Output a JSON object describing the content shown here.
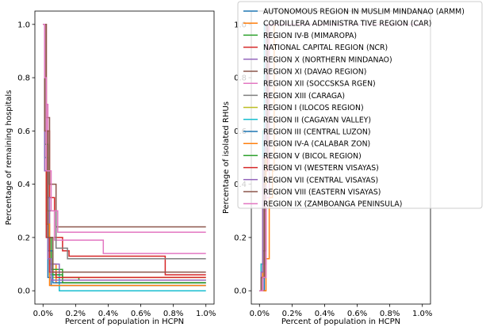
{
  "chart_data": [
    {
      "type": "line",
      "xlabel": "Percent of population in HCPN",
      "ylabel": "Percentage of remaining hospitals",
      "xlim": [
        -0.0005,
        0.0105
      ],
      "ylim": [
        -0.05,
        1.05
      ],
      "x_ticks": [
        0.0,
        0.002,
        0.004,
        0.006,
        0.008,
        0.01
      ],
      "x_tick_labels": [
        "0.0%",
        "0.2%",
        "0.4%",
        "0.6%",
        "0.8%",
        "1.0%"
      ],
      "y_ticks": [
        0.0,
        0.2,
        0.4,
        0.6,
        0.8,
        1.0
      ],
      "y_tick_labels": [
        "0.0",
        "0.2",
        "0.4",
        "0.6",
        "0.8",
        "1.0"
      ],
      "step": true,
      "series": [
        {
          "name": "AUTONOMOUS REGION IN MUSLIM MINDANAO (ARMM)",
          "color": "#1f77b4",
          "x": [
            0.0,
            0.0001,
            0.0002,
            0.0003,
            0.0005,
            0.01
          ],
          "y": [
            1.0,
            0.6,
            0.25,
            0.05,
            0.02,
            0.02
          ]
        },
        {
          "name": "CORDILLERA ADMINISTRA TIVE REGION (CAR)",
          "color": "#ff7f0e",
          "x": [
            0.0,
            0.0001,
            0.0002,
            0.0004,
            0.0008,
            0.01
          ],
          "y": [
            1.0,
            0.55,
            0.3,
            0.1,
            0.03,
            0.03
          ]
        },
        {
          "name": "REGION IV-B (MIMAROPA)",
          "color": "#2ca02c",
          "x": [
            0.0,
            0.0001,
            0.0003,
            0.0005,
            0.0012,
            0.0022,
            0.01
          ],
          "y": [
            1.0,
            0.5,
            0.2,
            0.08,
            0.05,
            0.04,
            0.04
          ]
        },
        {
          "name": "NATIONAL CAPITAL REGION (NCR)",
          "color": "#d62728",
          "x": [
            0.0,
            0.0002,
            0.0004,
            0.0007,
            0.0012,
            0.0016,
            0.0075,
            0.01
          ],
          "y": [
            1.0,
            0.6,
            0.35,
            0.2,
            0.15,
            0.13,
            0.06,
            0.06
          ]
        },
        {
          "name": "REGION X (NORTHERN MINDANAO)",
          "color": "#9467bd",
          "x": [
            0.0,
            0.0001,
            0.0002,
            0.0004,
            0.001,
            0.01
          ],
          "y": [
            1.0,
            0.7,
            0.35,
            0.1,
            0.04,
            0.04
          ]
        },
        {
          "name": "REGION XI (DAVAO REGION)",
          "color": "#8c564b",
          "x": [
            0.0,
            0.0002,
            0.0004,
            0.0008,
            0.01
          ],
          "y": [
            1.0,
            0.65,
            0.4,
            0.24,
            0.24
          ]
        },
        {
          "name": "REGION XII (SOCCSKSA RGEN)",
          "color": "#e377c2",
          "x": [
            0.0,
            0.0001,
            0.0003,
            0.0007,
            0.0037,
            0.01
          ],
          "y": [
            1.0,
            0.7,
            0.3,
            0.19,
            0.14,
            0.14
          ]
        },
        {
          "name": "REGION XIII (CARAGA)",
          "color": "#7f7f7f",
          "x": [
            0.0,
            0.0001,
            0.0003,
            0.0008,
            0.0015,
            0.01
          ],
          "y": [
            1.0,
            0.6,
            0.3,
            0.16,
            0.12,
            0.12
          ]
        },
        {
          "name": "REGION I (ILOCOS REGION)",
          "color": "#bcbd22",
          "x": [
            0.0,
            0.0001,
            0.0003,
            0.0006,
            0.01
          ],
          "y": [
            1.0,
            0.5,
            0.15,
            0.05,
            0.05
          ]
        },
        {
          "name": "REGION II (CAGAYAN VALLEY)",
          "color": "#17becf",
          "x": [
            0.0,
            0.0001,
            0.0002,
            0.0004,
            0.001,
            0.01
          ],
          "y": [
            1.0,
            0.5,
            0.2,
            0.06,
            0.0,
            0.0
          ]
        },
        {
          "name": "REGION III (CENTRAL LUZON)",
          "color": "#1f77b4",
          "x": [
            0.0,
            0.0001,
            0.0003,
            0.0006,
            0.01
          ],
          "y": [
            1.0,
            0.55,
            0.15,
            0.03,
            0.03
          ]
        },
        {
          "name": "REGION IV-A (CALABAR ZON)",
          "color": "#ff7f0e",
          "x": [
            0.0,
            0.0001,
            0.0002,
            0.0004,
            0.01
          ],
          "y": [
            1.0,
            0.6,
            0.25,
            0.02,
            0.02
          ]
        },
        {
          "name": "REGION V (BICOL REGION)",
          "color": "#2ca02c",
          "x": [
            0.0,
            0.0001,
            0.0003,
            0.0006,
            0.0012,
            0.01
          ],
          "y": [
            1.0,
            0.55,
            0.2,
            0.06,
            0.03,
            0.03
          ]
        },
        {
          "name": "REGION VI (WESTERN VISAYAS)",
          "color": "#d62728",
          "x": [
            0.0,
            0.0001,
            0.0002,
            0.0004,
            0.0008,
            0.01
          ],
          "y": [
            1.0,
            0.6,
            0.2,
            0.07,
            0.05,
            0.05
          ]
        },
        {
          "name": "REGION VII (CENTRAL VISAYAS)",
          "color": "#9467bd",
          "x": [
            0.0,
            0.0001,
            0.0003,
            0.0005,
            0.01
          ],
          "y": [
            1.0,
            0.45,
            0.12,
            0.04,
            0.04
          ]
        },
        {
          "name": "REGION VIII (EASTERN VISAYAS)",
          "color": "#8c564b",
          "x": [
            0.0,
            0.0001,
            0.0003,
            0.0006,
            0.01
          ],
          "y": [
            1.0,
            0.6,
            0.2,
            0.07,
            0.07
          ]
        },
        {
          "name": "REGION IX (ZAMBOANGA PENINSULA)",
          "color": "#e377c2",
          "x": [
            0.0,
            0.0001,
            0.0002,
            0.0005,
            0.0009,
            0.01
          ],
          "y": [
            1.0,
            0.8,
            0.45,
            0.3,
            0.22,
            0.22
          ]
        }
      ]
    },
    {
      "type": "line",
      "xlabel": "Percent of population in HCPN",
      "ylabel": "Percentage of isolated RHUs",
      "xlim": [
        -0.0005,
        0.0105
      ],
      "ylim": [
        -0.05,
        1.05
      ],
      "x_ticks": [
        0.0,
        0.002,
        0.004,
        0.006,
        0.008,
        0.01
      ],
      "x_tick_labels": [
        "0.0%",
        "0.2%",
        "0.4%",
        "0.6%",
        "0.8%",
        "1.0%"
      ],
      "y_ticks": [
        0.0,
        0.2,
        0.4,
        0.6,
        0.8,
        1.0
      ],
      "y_tick_labels": [
        "0.0",
        "0.2",
        "0.4",
        "0.6",
        "0.8",
        "1.0"
      ],
      "step": true,
      "series": [
        {
          "name": "AUTONOMOUS REGION IN MUSLIM MINDANAO (ARMM)",
          "color": "#1f77b4",
          "x": [
            0.0,
            0.0002,
            0.0003,
            0.0004,
            0.0006,
            0.01
          ],
          "y": [
            0.0,
            0.0,
            0.3,
            0.7,
            1.0,
            1.0
          ]
        },
        {
          "name": "CORDILLERA ADMINISTRA TIVE REGION (CAR)",
          "color": "#ff7f0e",
          "x": [
            0.0,
            0.0002,
            0.0004,
            0.0006,
            0.0008,
            0.0009,
            0.01
          ],
          "y": [
            0.0,
            0.0,
            0.12,
            0.35,
            0.45,
            1.0,
            1.0
          ]
        },
        {
          "name": "REGION IV-B (MIMAROPA)",
          "color": "#2ca02c",
          "x": [
            0.0,
            0.0001,
            0.0003,
            0.0005,
            0.01
          ],
          "y": [
            0.0,
            0.05,
            0.5,
            1.0,
            1.0
          ]
        },
        {
          "name": "NATIONAL CAPITAL REGION (NCR)",
          "color": "#d62728",
          "x": [
            0.0,
            0.0001,
            0.0003,
            0.0005,
            0.01
          ],
          "y": [
            0.0,
            0.1,
            0.55,
            1.0,
            1.0
          ]
        },
        {
          "name": "REGION X (NORTHERN MINDANAO)",
          "color": "#9467bd",
          "x": [
            0.0,
            0.0001,
            0.0003,
            0.0004,
            0.01
          ],
          "y": [
            0.0,
            0.05,
            0.6,
            1.0,
            1.0
          ]
        },
        {
          "name": "REGION XI (DAVAO REGION)",
          "color": "#8c564b",
          "x": [
            0.0,
            0.0002,
            0.0004,
            0.0005,
            0.01
          ],
          "y": [
            0.0,
            0.15,
            0.6,
            1.0,
            1.0
          ]
        },
        {
          "name": "REGION XII (SOCCSKSA RGEN)",
          "color": "#e377c2",
          "x": [
            0.0,
            0.0002,
            0.0004,
            0.0006,
            0.01
          ],
          "y": [
            0.0,
            0.1,
            0.5,
            1.0,
            1.0
          ]
        },
        {
          "name": "REGION XIII (CARAGA)",
          "color": "#7f7f7f",
          "x": [
            0.0,
            0.0001,
            0.0003,
            0.0005,
            0.01
          ],
          "y": [
            0.0,
            0.05,
            0.45,
            1.0,
            1.0
          ]
        },
        {
          "name": "REGION I (ILOCOS REGION)",
          "color": "#bcbd22",
          "x": [
            0.0,
            0.0001,
            0.0003,
            0.0004,
            0.01
          ],
          "y": [
            0.0,
            0.05,
            0.5,
            1.0,
            1.0
          ]
        },
        {
          "name": "REGION II (CAGAYAN VALLEY)",
          "color": "#17becf",
          "x": [
            0.0,
            0.0001,
            0.0002,
            0.0003,
            0.01
          ],
          "y": [
            0.0,
            0.1,
            0.6,
            1.0,
            1.0
          ]
        },
        {
          "name": "REGION III (CENTRAL LUZON)",
          "color": "#1f77b4",
          "x": [
            0.0,
            0.0001,
            0.0003,
            0.0004,
            0.01
          ],
          "y": [
            0.0,
            0.05,
            0.55,
            1.0,
            1.0
          ]
        },
        {
          "name": "REGION IV-A (CALABAR ZON)",
          "color": "#ff7f0e",
          "x": [
            0.0,
            0.0001,
            0.0002,
            0.0004,
            0.01
          ],
          "y": [
            0.0,
            0.05,
            0.4,
            1.0,
            1.0
          ]
        },
        {
          "name": "REGION V (BICOL REGION)",
          "color": "#2ca02c",
          "x": [
            0.0,
            0.0001,
            0.0003,
            0.0005,
            0.01
          ],
          "y": [
            0.0,
            0.05,
            0.5,
            1.0,
            1.0
          ]
        },
        {
          "name": "REGION VI (WESTERN VISAYAS)",
          "color": "#d62728",
          "x": [
            0.0,
            0.0001,
            0.0003,
            0.0005,
            0.01
          ],
          "y": [
            0.0,
            0.05,
            0.45,
            1.0,
            1.0
          ]
        },
        {
          "name": "REGION VII (CENTRAL VISAYAS)",
          "color": "#9467bd",
          "x": [
            0.0,
            0.0001,
            0.0002,
            0.0004,
            0.01
          ],
          "y": [
            0.0,
            0.07,
            0.5,
            1.0,
            1.0
          ]
        },
        {
          "name": "REGION VIII (EASTERN VISAYAS)",
          "color": "#8c564b",
          "x": [
            0.0,
            0.0001,
            0.0003,
            0.0005,
            0.01
          ],
          "y": [
            0.0,
            0.05,
            0.5,
            1.0,
            1.0
          ]
        },
        {
          "name": "REGION IX (ZAMBOANGA PENINSULA)",
          "color": "#e377c2",
          "x": [
            0.0,
            0.0002,
            0.0004,
            0.0006,
            0.01
          ],
          "y": [
            0.0,
            0.05,
            0.35,
            1.0,
            1.0
          ]
        }
      ]
    }
  ],
  "legend": {
    "placement": "upper-right, overlapping right panel",
    "shared_by": "both panels"
  }
}
